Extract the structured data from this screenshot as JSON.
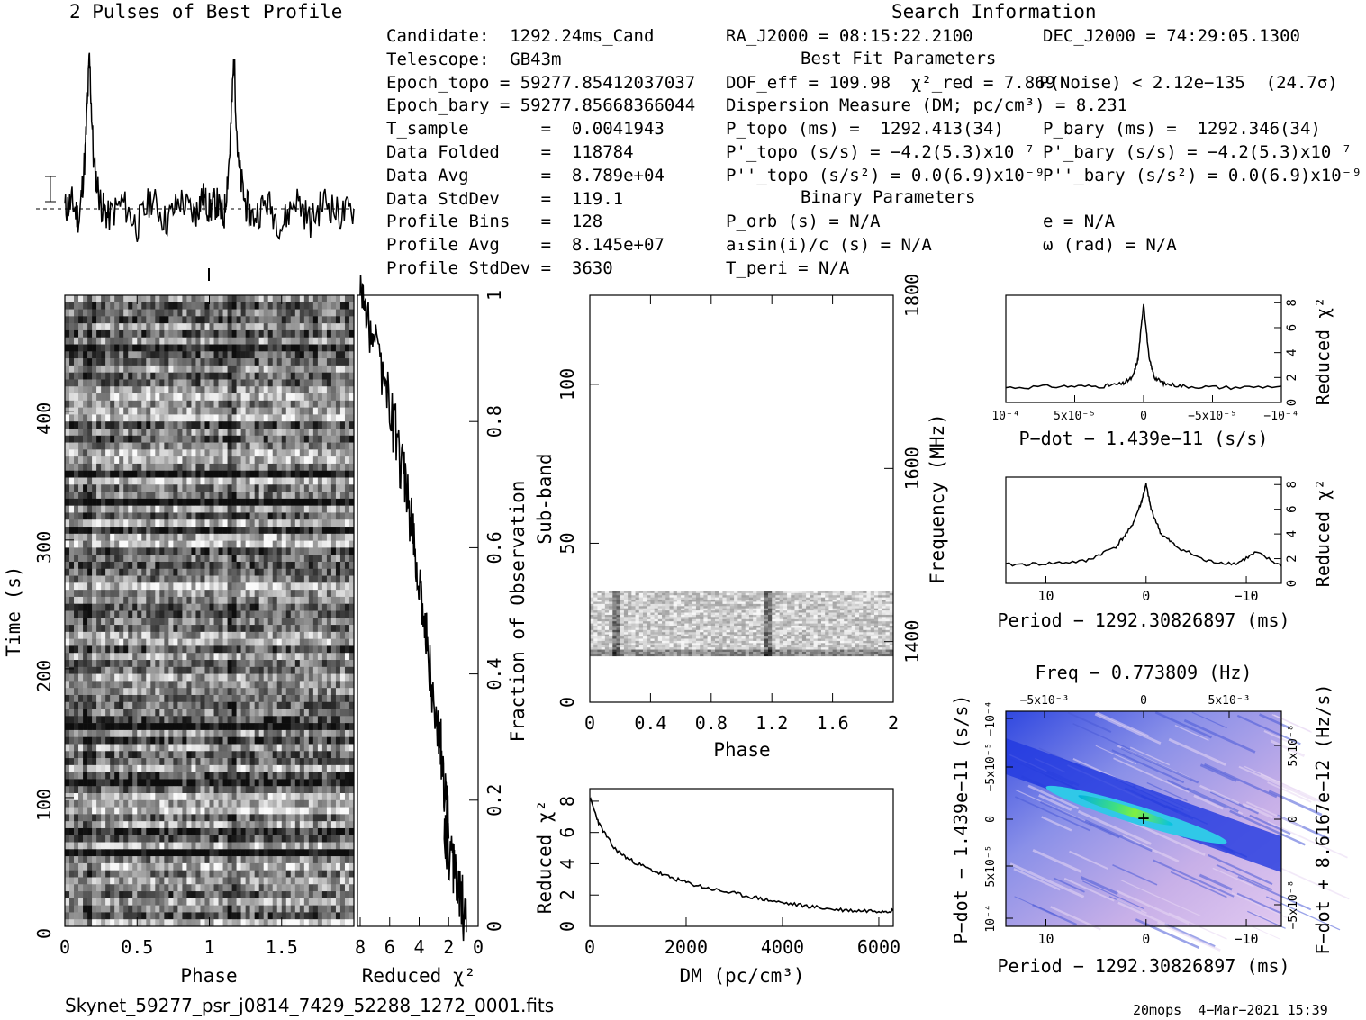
{
  "header": {
    "profile_title": "2 Pulses of Best Profile",
    "search_title": "Search Information",
    "best_fit_title": "Best Fit Parameters",
    "binary_title": "Binary Parameters"
  },
  "info": {
    "candidate": "Candidate:  1292.24ms_Cand",
    "telescope": "Telescope:  GB43m",
    "epoch_topo": "Epoch_topo = 59277.85412037037",
    "epoch_bary": "Epoch_bary = 59277.85668366044",
    "t_sample": "T_sample       =  0.0041943",
    "data_folded": "Data Folded    =  118784",
    "data_avg": "Data Avg       =  8.789e+04",
    "data_stddev": "Data StdDev    =  119.1",
    "profile_bins": "Profile Bins   =  128",
    "profile_avg": "Profile Avg    =  8.145e+07",
    "profile_stddev": "Profile StdDev =  3630"
  },
  "search": {
    "ra": "RA_J2000 = 08:15:22.2100",
    "dec": "DEC_J2000 = 74:29:05.1300",
    "dof": "DOF_eff = 109.98  χ²_red = 7.869",
    "pnoise": "P(Noise) < 2.12e−135  (24.7σ)",
    "dm": "Dispersion Measure (DM; pc/cm³) = 8.231",
    "p_topo": "P_topo (ms) =  1292.413(34)",
    "p_bary": "P_bary (ms) =  1292.346(34)",
    "pd_topo": "P'_topo (s/s) = −4.2(5.3)x10⁻⁷",
    "pd_bary": "P'_bary (s/s) = −4.2(5.3)x10⁻⁷",
    "pdd_topo": "P''_topo (s/s²) = 0.0(6.9)x10⁻⁹",
    "pdd_bary": "P''_bary (s/s²) = 0.0(6.9)x10⁻⁹",
    "p_orb": "P_orb (s) = N/A",
    "ecc": "e = N/A",
    "a1sini": "a₁sin(i)/c (s) = N/A",
    "omega": "ω (rad) = N/A",
    "t_peri": "T_peri = N/A"
  },
  "footer": {
    "filename": "Skynet_59277_psr_j0814_7429_52288_1272_0001.fits",
    "stamp": "20mops  4−Mar−2021 15:39"
  },
  "chart_data": [
    {
      "type": "line",
      "name": "profile",
      "title": "2 Pulses of Best Profile",
      "x": [
        0,
        0.05,
        0.1,
        0.14,
        0.17,
        0.2,
        0.25,
        0.3,
        0.4,
        0.5,
        0.6,
        0.7,
        0.8,
        0.9,
        0.95,
        1.0,
        1.05,
        1.1,
        1.14,
        1.17,
        1.2,
        1.25,
        1.3,
        1.4,
        1.5,
        1.6,
        1.7,
        1.8,
        1.9,
        2.0
      ],
      "y": [
        0.0,
        0.3,
        -0.5,
        2.5,
        7.0,
        2.0,
        0.2,
        -0.4,
        0.3,
        -0.8,
        0.5,
        -0.6,
        0.4,
        -0.3,
        0.6,
        0.0,
        0.3,
        -0.5,
        2.5,
        7.0,
        2.0,
        0.2,
        -0.4,
        0.3,
        -0.8,
        0.5,
        -0.6,
        0.4,
        -0.3,
        0.0
      ]
    },
    {
      "type": "heatmap",
      "name": "time-phase",
      "xlabel": "Phase",
      "ylabel": "Time (s)",
      "xlim": [
        0,
        2
      ],
      "ylim": [
        0,
        490
      ],
      "xticks": [
        "0",
        "0.5",
        "1",
        "1.5"
      ],
      "yticks": [
        "0",
        "100",
        "200",
        "300",
        "400"
      ]
    },
    {
      "type": "line",
      "name": "reduced-chi2-vs-time",
      "xlabel": "Reduced χ²",
      "ylabel": "Fraction of Observation",
      "xlim": [
        8,
        0
      ],
      "ylim": [
        0,
        1
      ],
      "xticks": [
        "8",
        "6",
        "4",
        "2",
        "0"
      ],
      "yticks": [
        "0",
        "0.2",
        "0.4",
        "0.6",
        "0.8",
        "1"
      ],
      "x": [
        0.8,
        1.2,
        1.6,
        1.8,
        2.3,
        2.0,
        2.3,
        2.6,
        3.1,
        3.5,
        3.9,
        4.3,
        4.6,
        5.1,
        5.6,
        6.3,
        7.0,
        7.6,
        8.0
      ],
      "y": [
        0.0,
        0.05,
        0.08,
        0.1,
        0.13,
        0.18,
        0.22,
        0.3,
        0.38,
        0.45,
        0.52,
        0.6,
        0.65,
        0.72,
        0.78,
        0.85,
        0.92,
        0.97,
        1.0
      ]
    },
    {
      "type": "heatmap",
      "name": "subband-phase",
      "xlabel": "Phase",
      "ylabel": "Sub-band",
      "y2label": "Frequency (MHz)",
      "xlim": [
        0,
        2
      ],
      "ylim": [
        0,
        128
      ],
      "xticks": [
        "0",
        "0.4",
        "0.8",
        "1.2",
        "1.6",
        "2"
      ],
      "yticks": [
        "0",
        "50",
        "100"
      ],
      "y2ticks": [
        "1400",
        "1600",
        "1800"
      ]
    },
    {
      "type": "line",
      "name": "chi2-vs-dm",
      "xlabel": "DM (pc/cm³)",
      "ylabel": "Reduced χ²",
      "xlim": [
        0,
        6300
      ],
      "ylim": [
        0,
        8.8
      ],
      "xticks": [
        "0",
        "2000",
        "4000",
        "6000"
      ],
      "yticks": [
        "0",
        "2",
        "4",
        "6",
        "8"
      ],
      "x": [
        0,
        200,
        500,
        800,
        1200,
        1600,
        2000,
        2500,
        3000,
        3500,
        4000,
        4500,
        5000,
        5500,
        6000,
        6300
      ],
      "y": [
        8.2,
        6.5,
        5.0,
        4.3,
        3.7,
        3.2,
        2.8,
        2.4,
        2.1,
        1.8,
        1.5,
        1.3,
        1.1,
        1.0,
        1.0,
        1.0
      ]
    },
    {
      "type": "line",
      "name": "chi2-vs-pdot",
      "xlabel": "P−dot − 1.439e−11 (s/s)",
      "ylabel": "Reduced χ²",
      "xticks": [
        "10⁻⁴",
        "5x10⁻⁵",
        "0",
        "−5x10⁻⁵",
        "−10⁻⁴"
      ],
      "yticks": [
        "0",
        "2",
        "4",
        "6",
        "8"
      ],
      "xlim": [
        -1,
        1
      ],
      "ylim": [
        0,
        8.6
      ],
      "x": [
        -1,
        -0.6,
        -0.3,
        -0.15,
        -0.08,
        -0.04,
        0,
        0.04,
        0.08,
        0.15,
        0.3,
        0.6,
        1
      ],
      "y": [
        1.2,
        1.3,
        1.3,
        1.5,
        2.0,
        3.5,
        8.0,
        3.5,
        2.0,
        1.5,
        1.3,
        1.2,
        1.3
      ]
    },
    {
      "type": "line",
      "name": "chi2-vs-period",
      "xlabel": "Period − 1292.30826897 (ms)",
      "ylabel": "Reduced χ²",
      "xticks": [
        "10",
        "0",
        "−10"
      ],
      "yticks": [
        "0",
        "2",
        "4",
        "6",
        "8"
      ],
      "xlim": [
        14,
        -13.5
      ],
      "ylim": [
        0,
        8.6
      ],
      "x": [
        14,
        10,
        6,
        3,
        1.5,
        0.5,
        0,
        -0.5,
        -1.5,
        -3,
        -6,
        -9,
        -11,
        -13.5
      ],
      "y": [
        1.5,
        1.6,
        1.8,
        3.0,
        4.5,
        6.5,
        8.0,
        6.0,
        4.0,
        3.0,
        1.8,
        1.6,
        2.5,
        1.4
      ]
    },
    {
      "type": "heatmap",
      "name": "period-pdot",
      "title": "Freq − 0.773809 (Hz)",
      "xlabel": "Period − 1292.30826897 (ms)",
      "ylabel": "P−dot − 1.439e−11 (s/s)",
      "y2label": "F−dot + 8.6167e−12 (Hz/s)",
      "xticks": [
        "10",
        "0",
        "−10"
      ],
      "x2ticks": [
        "−5x10⁻³",
        "0",
        "5x10⁻³"
      ],
      "yticks": [
        "10⁻⁴",
        "5x10⁻⁵",
        "0",
        "−5x10⁻⁵",
        "−10⁻⁴"
      ],
      "y2ticks": [
        "−5x10⁻⁸",
        "0",
        "5x10⁻⁸"
      ]
    }
  ]
}
